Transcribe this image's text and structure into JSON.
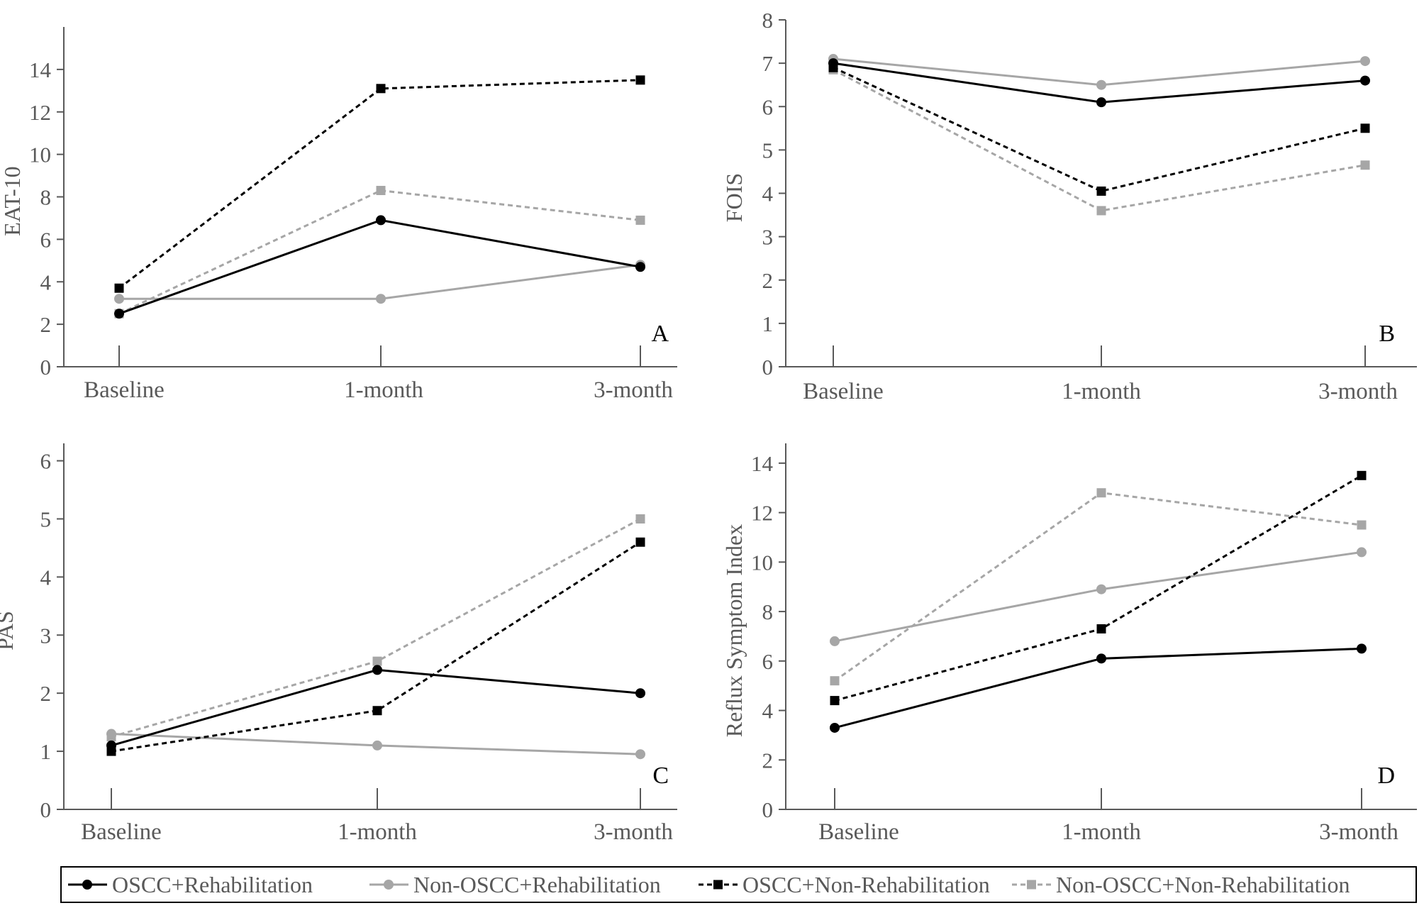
{
  "chart_data": [
    {
      "type": "line",
      "panel_label": "A",
      "categories": [
        "Baseline",
        "1-month",
        "3-month"
      ],
      "ylabel": "EAT-10",
      "ylim": [
        0,
        16
      ],
      "yticks": [
        0,
        2,
        4,
        6,
        8,
        10,
        12,
        14
      ],
      "series": [
        {
          "name": "OSCC+Rehabilitation",
          "values": [
            2.5,
            6.9,
            4.7
          ]
        },
        {
          "name": "Non-OSCC+Rehabilitation",
          "values": [
            3.2,
            3.2,
            4.8
          ]
        },
        {
          "name": "OSCC+Non-Rehabilitation",
          "values": [
            3.7,
            13.1,
            13.5
          ]
        },
        {
          "name": "Non-OSCC+Non-Rehabilitation",
          "values": [
            2.5,
            8.3,
            6.9
          ]
        }
      ]
    },
    {
      "type": "line",
      "panel_label": "B",
      "categories": [
        "Baseline",
        "1-month",
        "3-month"
      ],
      "ylabel": "FOIS",
      "ylim": [
        0,
        8
      ],
      "yticks": [
        0,
        1,
        2,
        3,
        4,
        5,
        6,
        7,
        8
      ],
      "series": [
        {
          "name": "OSCC+Rehabilitation",
          "values": [
            7.0,
            6.1,
            6.6
          ]
        },
        {
          "name": "Non-OSCC+Rehabilitation",
          "values": [
            7.1,
            6.5,
            7.05
          ]
        },
        {
          "name": "OSCC+Non-Rehabilitation",
          "values": [
            6.9,
            4.05,
            5.5
          ]
        },
        {
          "name": "Non-OSCC+Non-Rehabilitation",
          "values": [
            6.85,
            3.6,
            4.65
          ]
        }
      ]
    },
    {
      "type": "line",
      "panel_label": "C",
      "categories": [
        "Baseline",
        "1-month",
        "3-month"
      ],
      "ylabel": "PAS",
      "ylim": [
        0,
        6.3
      ],
      "yticks": [
        0,
        1,
        2,
        3,
        4,
        5,
        6
      ],
      "series": [
        {
          "name": "OSCC+Rehabilitation",
          "values": [
            1.1,
            2.4,
            2.0
          ]
        },
        {
          "name": "Non-OSCC+Rehabilitation",
          "values": [
            1.3,
            1.1,
            0.95
          ]
        },
        {
          "name": "OSCC+Non-Rehabilitation",
          "values": [
            1.0,
            1.7,
            4.6
          ]
        },
        {
          "name": "Non-OSCC+Non-Rehabilitation",
          "values": [
            1.25,
            2.55,
            5.0
          ]
        }
      ]
    },
    {
      "type": "line",
      "panel_label": "D",
      "categories": [
        "Baseline",
        "1-month",
        "3-month"
      ],
      "ylabel": "Reflux Symptom Index",
      "ylim": [
        0,
        14.8
      ],
      "yticks": [
        0,
        2,
        4,
        6,
        8,
        10,
        12,
        14
      ],
      "series": [
        {
          "name": "OSCC+Rehabilitation",
          "values": [
            3.3,
            6.1,
            6.5
          ]
        },
        {
          "name": "Non-OSCC+Rehabilitation",
          "values": [
            6.8,
            8.9,
            10.4
          ]
        },
        {
          "name": "OSCC+Non-Rehabilitation",
          "values": [
            4.4,
            7.3,
            13.5
          ]
        },
        {
          "name": "Non-OSCC+Non-Rehabilitation",
          "values": [
            5.2,
            12.8,
            11.5
          ]
        }
      ]
    }
  ],
  "legend": [
    {
      "name": "OSCC+Rehabilitation",
      "color": "#000000",
      "dash": "solid",
      "marker": "circle"
    },
    {
      "name": "Non-OSCC+Rehabilitation",
      "color": "#a6a6a6",
      "dash": "solid",
      "marker": "circle"
    },
    {
      "name": "OSCC+Non-Rehabilitation",
      "color": "#000000",
      "dash": "dashed",
      "marker": "square"
    },
    {
      "name": "Non-OSCC+Non-Rehabilitation",
      "color": "#a6a6a6",
      "dash": "dashed",
      "marker": "square"
    }
  ],
  "colors": {
    "axis": "#595959",
    "black_series": "#000000",
    "gray_series": "#a6a6a6"
  }
}
